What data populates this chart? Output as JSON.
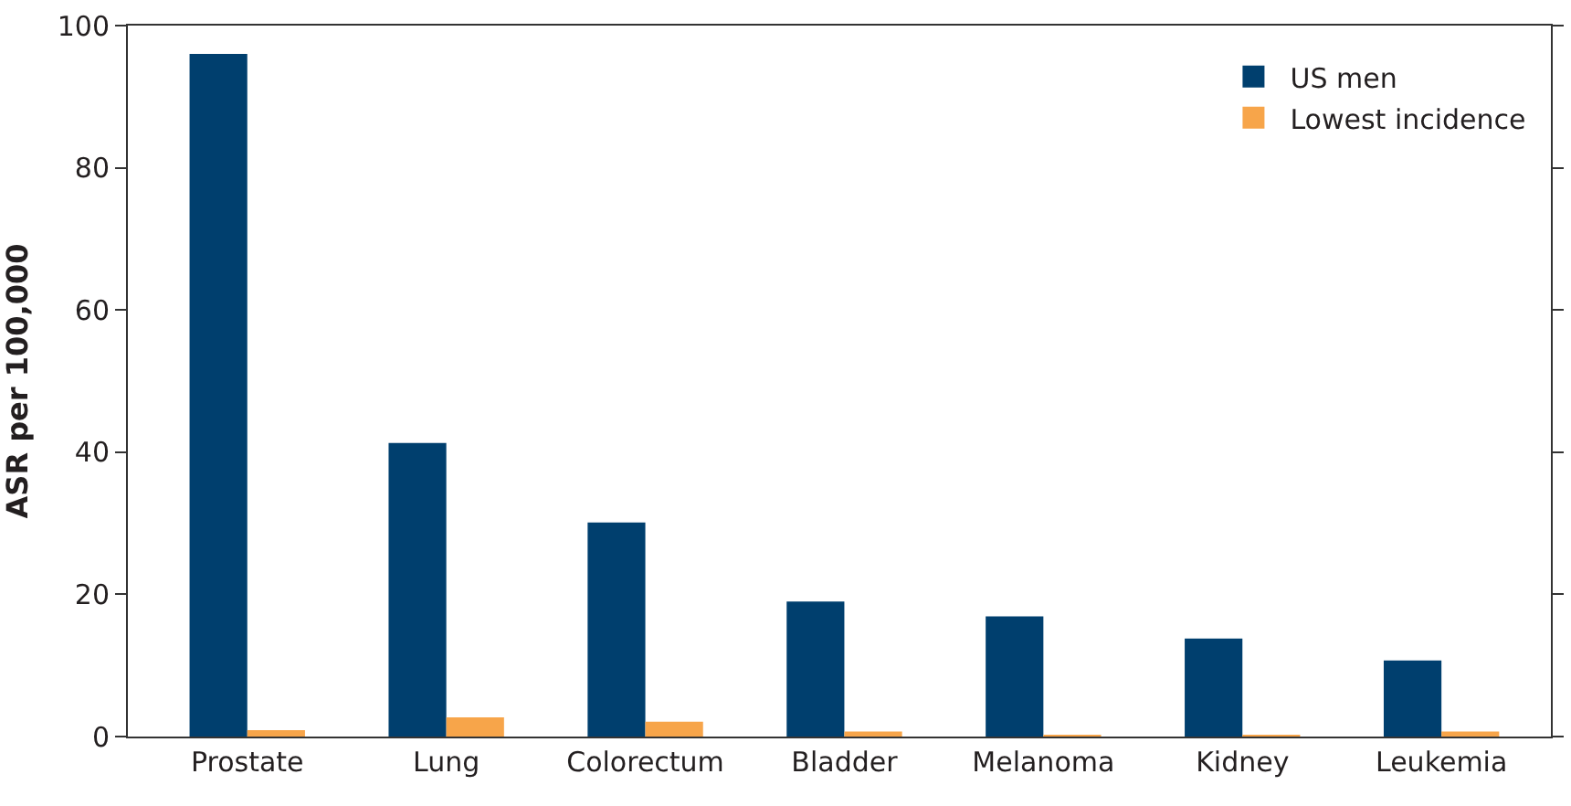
{
  "chart_data": {
    "type": "bar",
    "ylabel": "ASR per 100,000",
    "categories": [
      "Prostate",
      "Lung",
      "Colorectum",
      "Bladder",
      "Melanoma",
      "Kidney",
      "Leukemia"
    ],
    "series": [
      {
        "name": "US men",
        "color": "#003f6e",
        "values": [
          96,
          41.3,
          30.1,
          19,
          16.9,
          13.8,
          10.7
        ]
      },
      {
        "name": "Lowest incidence",
        "color": "#f7a54a",
        "values": [
          0.9,
          2.7,
          2.1,
          0.7,
          0.2,
          0.2,
          0.7
        ]
      }
    ],
    "ylim": [
      0,
      100
    ],
    "yticks": [
      0,
      20,
      40,
      60,
      80,
      100
    ],
    "legend": "top right"
  }
}
